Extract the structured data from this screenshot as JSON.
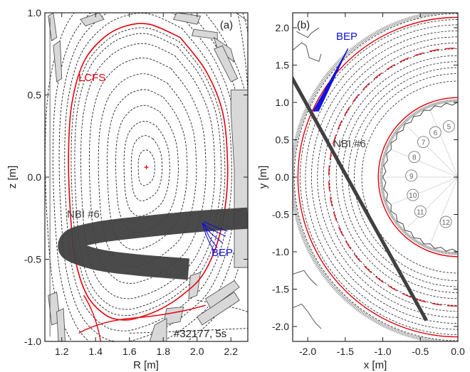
{
  "chart_data": [
    {
      "type": "line",
      "panel_label": "(a)",
      "xlabel": "R [m]",
      "ylabel": "z [m]",
      "xlim": [
        1.1,
        2.3
      ],
      "ylim": [
        -1.0,
        1.0
      ],
      "xticks": [
        "1.2",
        "1.4",
        "1.6",
        "1.8",
        "2.0",
        "2.2"
      ],
      "yticks": [
        "-1.0",
        "-0.5",
        "0.0",
        "0.5",
        "1.0"
      ],
      "magnetic_axis": {
        "R": 1.7,
        "z": 0.06
      },
      "lcfs": {
        "label": "LCFS",
        "color": "#e8000b",
        "R": [
          1.9,
          2.05,
          2.15,
          2.18,
          2.17,
          2.12,
          2.03,
          1.91,
          1.79,
          1.67,
          1.57,
          1.46,
          1.35,
          1.28,
          1.25,
          1.24,
          1.26,
          1.33,
          1.45,
          1.58,
          1.72,
          1.9
        ],
        "z": [
          0.85,
          0.65,
          0.4,
          0.1,
          -0.15,
          -0.4,
          -0.6,
          -0.72,
          -0.8,
          -0.85,
          -0.87,
          -0.84,
          -0.72,
          -0.5,
          -0.2,
          0.15,
          0.45,
          0.7,
          0.85,
          0.92,
          0.93,
          0.85
        ]
      },
      "flux_surfaces_scale": [
        0.12,
        0.22,
        0.32,
        0.43,
        0.54,
        0.65,
        0.76,
        0.86,
        0.93,
        0.97,
        1.05,
        1.12,
        1.2,
        1.3
      ],
      "beam": {
        "label": "NBI #6",
        "color": "#404040",
        "R": [
          2.3,
          2.0,
          1.7,
          1.45,
          1.28,
          1.24,
          1.28,
          1.45,
          1.7,
          1.95
        ],
        "z": [
          -0.25,
          -0.27,
          -0.3,
          -0.33,
          -0.37,
          -0.42,
          -0.46,
          -0.51,
          -0.54,
          -0.56
        ]
      },
      "bep": {
        "label": "BEP",
        "color": "#1010e0",
        "rays": [
          {
            "R": [
              2.03,
              2.08,
              2.15
            ],
            "z": [
              -0.28,
              -0.34,
              -0.4
            ]
          },
          {
            "R": [
              2.03,
              2.09,
              2.17
            ],
            "z": [
              -0.28,
              -0.32,
              -0.36
            ]
          },
          {
            "R": [
              2.04,
              2.1,
              2.18
            ],
            "z": [
              -0.27,
              -0.3,
              -0.33
            ]
          },
          {
            "R": [
              2.04,
              2.07,
              2.12
            ],
            "z": [
              -0.28,
              -0.36,
              -0.43
            ]
          },
          {
            "R": [
              2.03,
              2.06,
              2.1
            ],
            "z": [
              -0.28,
              -0.37,
              -0.45
            ]
          }
        ]
      },
      "shot_label": "#32177, 5s"
    },
    {
      "type": "line",
      "panel_label": "(b)",
      "xlabel": "x [m]",
      "ylabel": "y [m]",
      "xlim": [
        -2.2,
        0.0
      ],
      "ylim": [
        -2.2,
        2.2
      ],
      "xticks": [
        "-2.0",
        "-1.5",
        "-1.0",
        "-0.5",
        "0.0"
      ],
      "yticks": [
        "-2.0",
        "-1.5",
        "-1.0",
        "-0.5",
        "0.0",
        "0.5",
        "1.0",
        "1.5",
        "2.0"
      ],
      "circles_radius": [
        2.18,
        2.1,
        2.03,
        1.95,
        1.87,
        1.79,
        1.71,
        1.62,
        1.54,
        1.46,
        1.38,
        1.28
      ],
      "red_circles_radius": [
        2.13,
        1.06
      ],
      "red_dashed_radius": [
        1.72
      ],
      "inner_wall_radius": 1.0,
      "beam": {
        "label": "NBI #6",
        "x": [
          -2.22,
          -0.42
        ],
        "y": [
          1.35,
          -1.92
        ],
        "color": "#404040"
      },
      "bep": {
        "label": "BEP",
        "color": "#1010e0",
        "x": [
          -1.93,
          -1.5
        ],
        "y": [
          0.88,
          1.65
        ]
      },
      "sector_labels": [
        "5",
        "6",
        "7",
        "8",
        "9",
        "10",
        "11",
        "12"
      ]
    }
  ]
}
